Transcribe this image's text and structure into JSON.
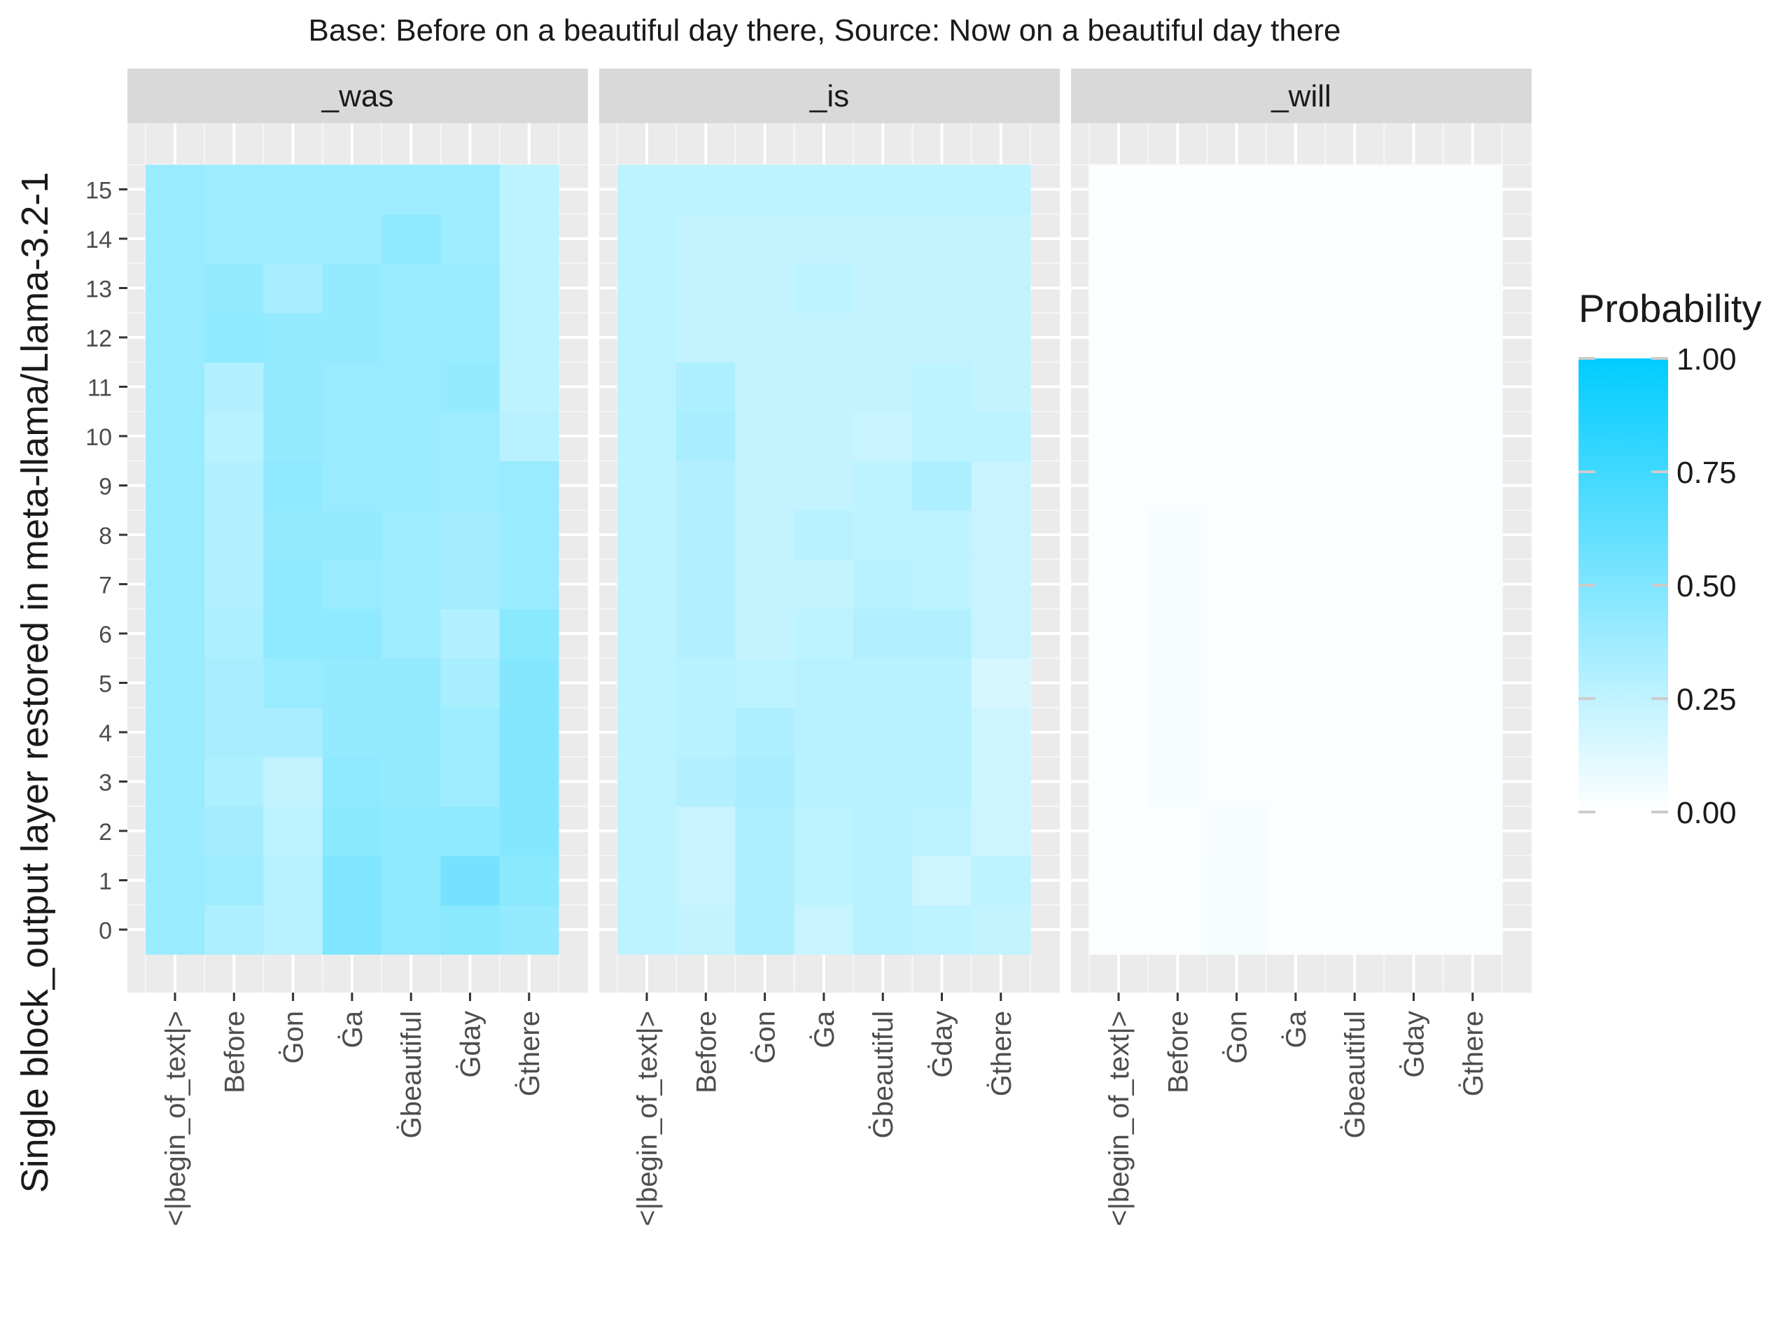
{
  "chart_data": {
    "type": "heatmap",
    "title": "Base: Before on a beautiful day there, Source: Now on a beautiful day there",
    "ylabel": "Single block_output layer restored in meta-llama/Llama-3.2-1",
    "xlabel": "",
    "x_categories": [
      "<|begin_of_text|>",
      "Before",
      "Ġon",
      "Ġa",
      "Ġbeautiful",
      "Ġday",
      "Ġthere"
    ],
    "y_categories": [
      0,
      1,
      2,
      3,
      4,
      5,
      6,
      7,
      8,
      9,
      10,
      11,
      12,
      13,
      14,
      15
    ],
    "grid": true,
    "legend": {
      "title": "Probability",
      "position": "right",
      "scale": [
        0,
        1
      ],
      "ticks": [
        "0.00",
        "0.25",
        "0.50",
        "0.75",
        "1.00"
      ],
      "low_color": "#ffffff",
      "high_color": "#00ccff"
    },
    "panels": [
      {
        "label": "_was",
        "values": [
          [
            0.4,
            0.32,
            0.28,
            0.5,
            0.44,
            0.46,
            0.42
          ],
          [
            0.4,
            0.38,
            0.28,
            0.5,
            0.44,
            0.54,
            0.46
          ],
          [
            0.4,
            0.36,
            0.26,
            0.46,
            0.44,
            0.44,
            0.48
          ],
          [
            0.4,
            0.32,
            0.24,
            0.44,
            0.42,
            0.38,
            0.48
          ],
          [
            0.4,
            0.34,
            0.34,
            0.42,
            0.42,
            0.38,
            0.48
          ],
          [
            0.4,
            0.34,
            0.4,
            0.42,
            0.42,
            0.34,
            0.48
          ],
          [
            0.4,
            0.32,
            0.44,
            0.44,
            0.38,
            0.3,
            0.46
          ],
          [
            0.4,
            0.3,
            0.44,
            0.4,
            0.38,
            0.36,
            0.4
          ],
          [
            0.4,
            0.3,
            0.42,
            0.42,
            0.38,
            0.36,
            0.4
          ],
          [
            0.4,
            0.3,
            0.44,
            0.4,
            0.4,
            0.38,
            0.4
          ],
          [
            0.4,
            0.28,
            0.42,
            0.4,
            0.4,
            0.38,
            0.28
          ],
          [
            0.4,
            0.3,
            0.42,
            0.4,
            0.4,
            0.42,
            0.26
          ],
          [
            0.4,
            0.44,
            0.42,
            0.42,
            0.4,
            0.4,
            0.26
          ],
          [
            0.4,
            0.42,
            0.34,
            0.42,
            0.4,
            0.4,
            0.26
          ],
          [
            0.4,
            0.38,
            0.38,
            0.38,
            0.44,
            0.38,
            0.26
          ],
          [
            0.4,
            0.38,
            0.38,
            0.38,
            0.38,
            0.38,
            0.26
          ]
        ]
      },
      {
        "label": "_is",
        "values": [
          [
            0.26,
            0.24,
            0.32,
            0.22,
            0.28,
            0.26,
            0.24
          ],
          [
            0.26,
            0.22,
            0.32,
            0.26,
            0.28,
            0.2,
            0.26
          ],
          [
            0.26,
            0.22,
            0.32,
            0.26,
            0.28,
            0.26,
            0.2
          ],
          [
            0.26,
            0.3,
            0.34,
            0.28,
            0.28,
            0.28,
            0.2
          ],
          [
            0.26,
            0.28,
            0.32,
            0.28,
            0.28,
            0.28,
            0.2
          ],
          [
            0.26,
            0.28,
            0.26,
            0.28,
            0.28,
            0.28,
            0.16
          ],
          [
            0.26,
            0.3,
            0.24,
            0.26,
            0.3,
            0.3,
            0.22
          ],
          [
            0.26,
            0.3,
            0.24,
            0.24,
            0.28,
            0.26,
            0.22
          ],
          [
            0.26,
            0.3,
            0.24,
            0.28,
            0.26,
            0.26,
            0.22
          ],
          [
            0.26,
            0.3,
            0.24,
            0.24,
            0.26,
            0.32,
            0.22
          ],
          [
            0.26,
            0.34,
            0.24,
            0.24,
            0.22,
            0.26,
            0.26
          ],
          [
            0.26,
            0.32,
            0.24,
            0.24,
            0.24,
            0.26,
            0.24
          ],
          [
            0.26,
            0.24,
            0.24,
            0.24,
            0.24,
            0.24,
            0.24
          ],
          [
            0.26,
            0.24,
            0.24,
            0.26,
            0.24,
            0.24,
            0.24
          ],
          [
            0.26,
            0.24,
            0.24,
            0.24,
            0.24,
            0.24,
            0.24
          ],
          [
            0.26,
            0.26,
            0.26,
            0.26,
            0.26,
            0.26,
            0.26
          ]
        ]
      },
      {
        "label": "_will",
        "values": [
          [
            0.02,
            0.02,
            0.04,
            0.02,
            0.02,
            0.02,
            0.02
          ],
          [
            0.02,
            0.02,
            0.04,
            0.02,
            0.02,
            0.02,
            0.02
          ],
          [
            0.02,
            0.02,
            0.03,
            0.02,
            0.02,
            0.02,
            0.02
          ],
          [
            0.02,
            0.03,
            0.02,
            0.02,
            0.02,
            0.02,
            0.02
          ],
          [
            0.02,
            0.03,
            0.02,
            0.02,
            0.02,
            0.02,
            0.02
          ],
          [
            0.02,
            0.03,
            0.02,
            0.02,
            0.02,
            0.02,
            0.02
          ],
          [
            0.02,
            0.03,
            0.02,
            0.02,
            0.02,
            0.02,
            0.02
          ],
          [
            0.02,
            0.03,
            0.02,
            0.02,
            0.02,
            0.02,
            0.02
          ],
          [
            0.02,
            0.03,
            0.02,
            0.02,
            0.02,
            0.02,
            0.02
          ],
          [
            0.02,
            0.02,
            0.02,
            0.02,
            0.02,
            0.02,
            0.02
          ],
          [
            0.02,
            0.02,
            0.02,
            0.02,
            0.02,
            0.02,
            0.02
          ],
          [
            0.02,
            0.02,
            0.02,
            0.02,
            0.02,
            0.02,
            0.02
          ],
          [
            0.02,
            0.02,
            0.02,
            0.02,
            0.02,
            0.02,
            0.02
          ],
          [
            0.02,
            0.02,
            0.02,
            0.02,
            0.02,
            0.02,
            0.02
          ],
          [
            0.02,
            0.02,
            0.02,
            0.02,
            0.02,
            0.02,
            0.02
          ],
          [
            0.02,
            0.02,
            0.02,
            0.02,
            0.02,
            0.02,
            0.02
          ]
        ]
      }
    ]
  }
}
